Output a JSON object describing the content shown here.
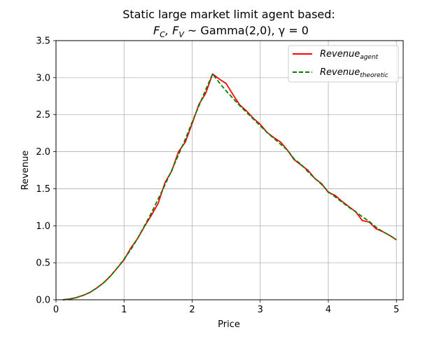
{
  "chart_data": {
    "type": "line",
    "title_line1": "Static large market limit agent based:",
    "title_line2_prefix": "F",
    "title_line2_sub1": "C",
    "title_line2_mid": ", F",
    "title_line2_sub2": "V",
    "title_line2_rest": " ~ Gamma(2,0), γ = 0",
    "xlabel": "Price",
    "ylabel": "Revenue",
    "xlim": [
      0,
      5.1
    ],
    "ylim": [
      0,
      3.5
    ],
    "xticks": [
      0,
      1,
      2,
      3,
      4,
      5
    ],
    "yticks": [
      0.0,
      0.5,
      1.0,
      1.5,
      2.0,
      2.5,
      3.0,
      3.5
    ],
    "xtick_labels": [
      "0",
      "1",
      "2",
      "3",
      "4",
      "5"
    ],
    "ytick_labels": [
      "0.0",
      "0.5",
      "1.0",
      "1.5",
      "2.0",
      "2.5",
      "3.0",
      "3.5"
    ],
    "grid": true,
    "legend_position": "top-right",
    "series": [
      {
        "name": "Revenue_agent",
        "legend_base": "Revenue",
        "legend_sub": "agent",
        "color": "#ff0000",
        "dash": "solid",
        "x": [
          0.1,
          0.2,
          0.3,
          0.4,
          0.5,
          0.6,
          0.7,
          0.8,
          0.9,
          1.0,
          1.1,
          1.2,
          1.3,
          1.4,
          1.5,
          1.6,
          1.7,
          1.8,
          1.9,
          2.0,
          2.1,
          2.2,
          2.3,
          2.4,
          2.5,
          2.6,
          2.7,
          2.8,
          2.9,
          3.0,
          3.1,
          3.2,
          3.3,
          3.4,
          3.5,
          3.6,
          3.7,
          3.8,
          3.9,
          4.0,
          4.1,
          4.2,
          4.3,
          4.4,
          4.5,
          4.6,
          4.7,
          4.8,
          4.9,
          5.0
        ],
        "y": [
          0.0,
          0.01,
          0.03,
          0.06,
          0.1,
          0.16,
          0.23,
          0.32,
          0.43,
          0.54,
          0.7,
          0.83,
          0.99,
          1.14,
          1.3,
          1.58,
          1.74,
          2.0,
          2.13,
          2.38,
          2.64,
          2.79,
          3.05,
          2.98,
          2.92,
          2.77,
          2.63,
          2.55,
          2.45,
          2.37,
          2.26,
          2.19,
          2.13,
          2.02,
          1.89,
          1.82,
          1.75,
          1.64,
          1.57,
          1.45,
          1.41,
          1.33,
          1.26,
          1.19,
          1.07,
          1.05,
          0.96,
          0.92,
          0.87,
          0.81
        ]
      },
      {
        "name": "Revenue_theoretic",
        "legend_base": "Revenue",
        "legend_sub": "theoretic",
        "color": "#008000",
        "dash": "dashed",
        "x": [
          0.1,
          0.2,
          0.3,
          0.4,
          0.5,
          0.6,
          0.7,
          0.8,
          0.9,
          1.0,
          1.1,
          1.2,
          1.3,
          1.4,
          1.5,
          1.6,
          1.7,
          1.8,
          1.9,
          2.0,
          2.1,
          2.2,
          2.3,
          2.4,
          2.5,
          2.6,
          2.7,
          2.8,
          2.9,
          3.0,
          3.1,
          3.2,
          3.3,
          3.4,
          3.5,
          3.6,
          3.7,
          3.8,
          3.9,
          4.0,
          4.1,
          4.2,
          4.3,
          4.4,
          4.5,
          4.6,
          4.7,
          4.8,
          4.9,
          5.0
        ],
        "y": [
          0.0,
          0.01,
          0.03,
          0.06,
          0.1,
          0.16,
          0.23,
          0.32,
          0.43,
          0.55,
          0.68,
          0.83,
          1.0,
          1.17,
          1.36,
          1.55,
          1.75,
          1.96,
          2.17,
          2.4,
          2.62,
          2.84,
          3.05,
          2.93,
          2.82,
          2.72,
          2.62,
          2.53,
          2.44,
          2.35,
          2.26,
          2.18,
          2.1,
          2.02,
          1.9,
          1.83,
          1.73,
          1.64,
          1.56,
          1.46,
          1.39,
          1.32,
          1.25,
          1.19,
          1.12,
          1.06,
          0.98,
          0.92,
          0.87,
          0.81
        ]
      }
    ]
  }
}
